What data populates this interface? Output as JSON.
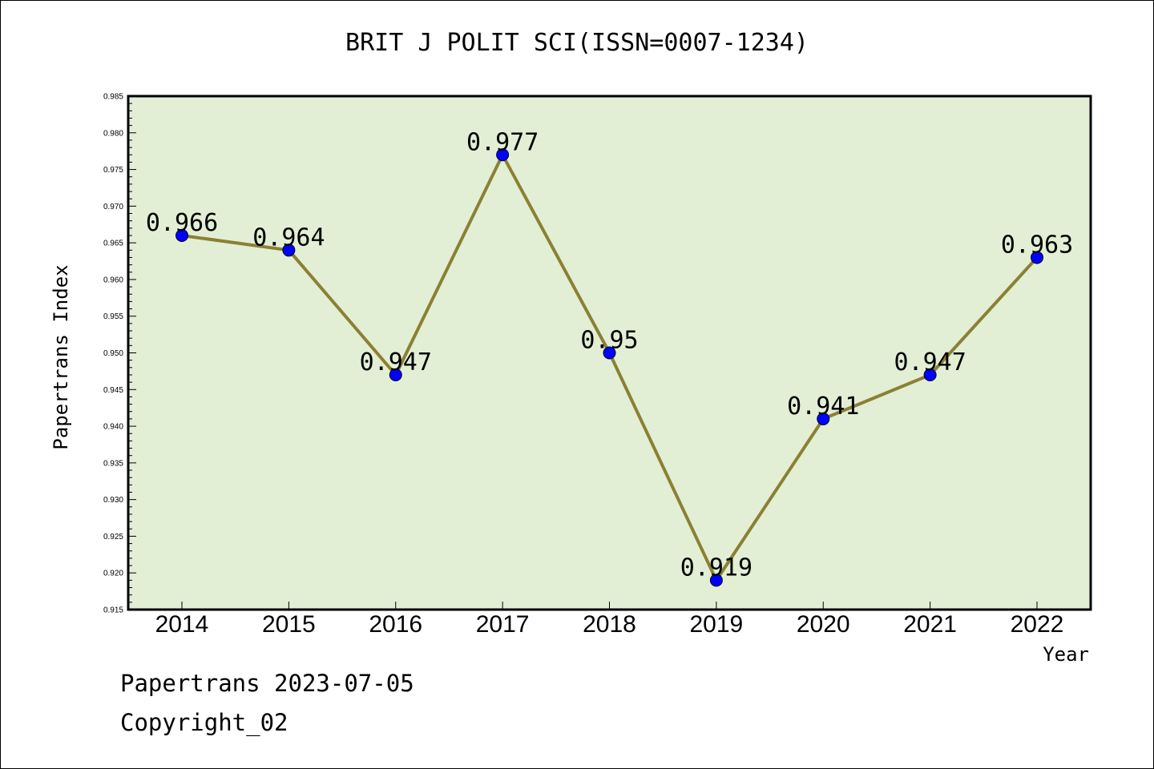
{
  "chart_data": {
    "type": "line",
    "title": "BRIT J POLIT SCI(ISSN=0007-1234)",
    "xlabel": "Year",
    "ylabel": "Papertrans Index",
    "categories": [
      "2014",
      "2015",
      "2016",
      "2017",
      "2018",
      "2019",
      "2020",
      "2021",
      "2022"
    ],
    "series": [
      {
        "values": [
          0.966,
          0.964,
          0.947,
          0.977,
          0.95,
          0.919,
          0.941,
          0.947,
          0.963
        ]
      }
    ],
    "data_labels": [
      "0.966",
      "0.964",
      "0.947",
      "0.977",
      "0.95",
      "0.919",
      "0.941",
      "0.947",
      "0.963"
    ],
    "ylim": [
      0.915,
      0.985
    ],
    "yticks": [
      "0.915",
      "0.920",
      "0.925",
      "0.930",
      "0.935",
      "0.940",
      "0.945",
      "0.950",
      "0.955",
      "0.960",
      "0.965",
      "0.970",
      "0.975",
      "0.980",
      "0.985"
    ],
    "grid": false,
    "legend": "none",
    "colors": {
      "plot_background": "#e2efd5",
      "line": "#8b8033",
      "marker": "#0000ff"
    }
  },
  "footer": {
    "line1": "Papertrans 2023-07-05",
    "line2": "Copyright_02"
  }
}
